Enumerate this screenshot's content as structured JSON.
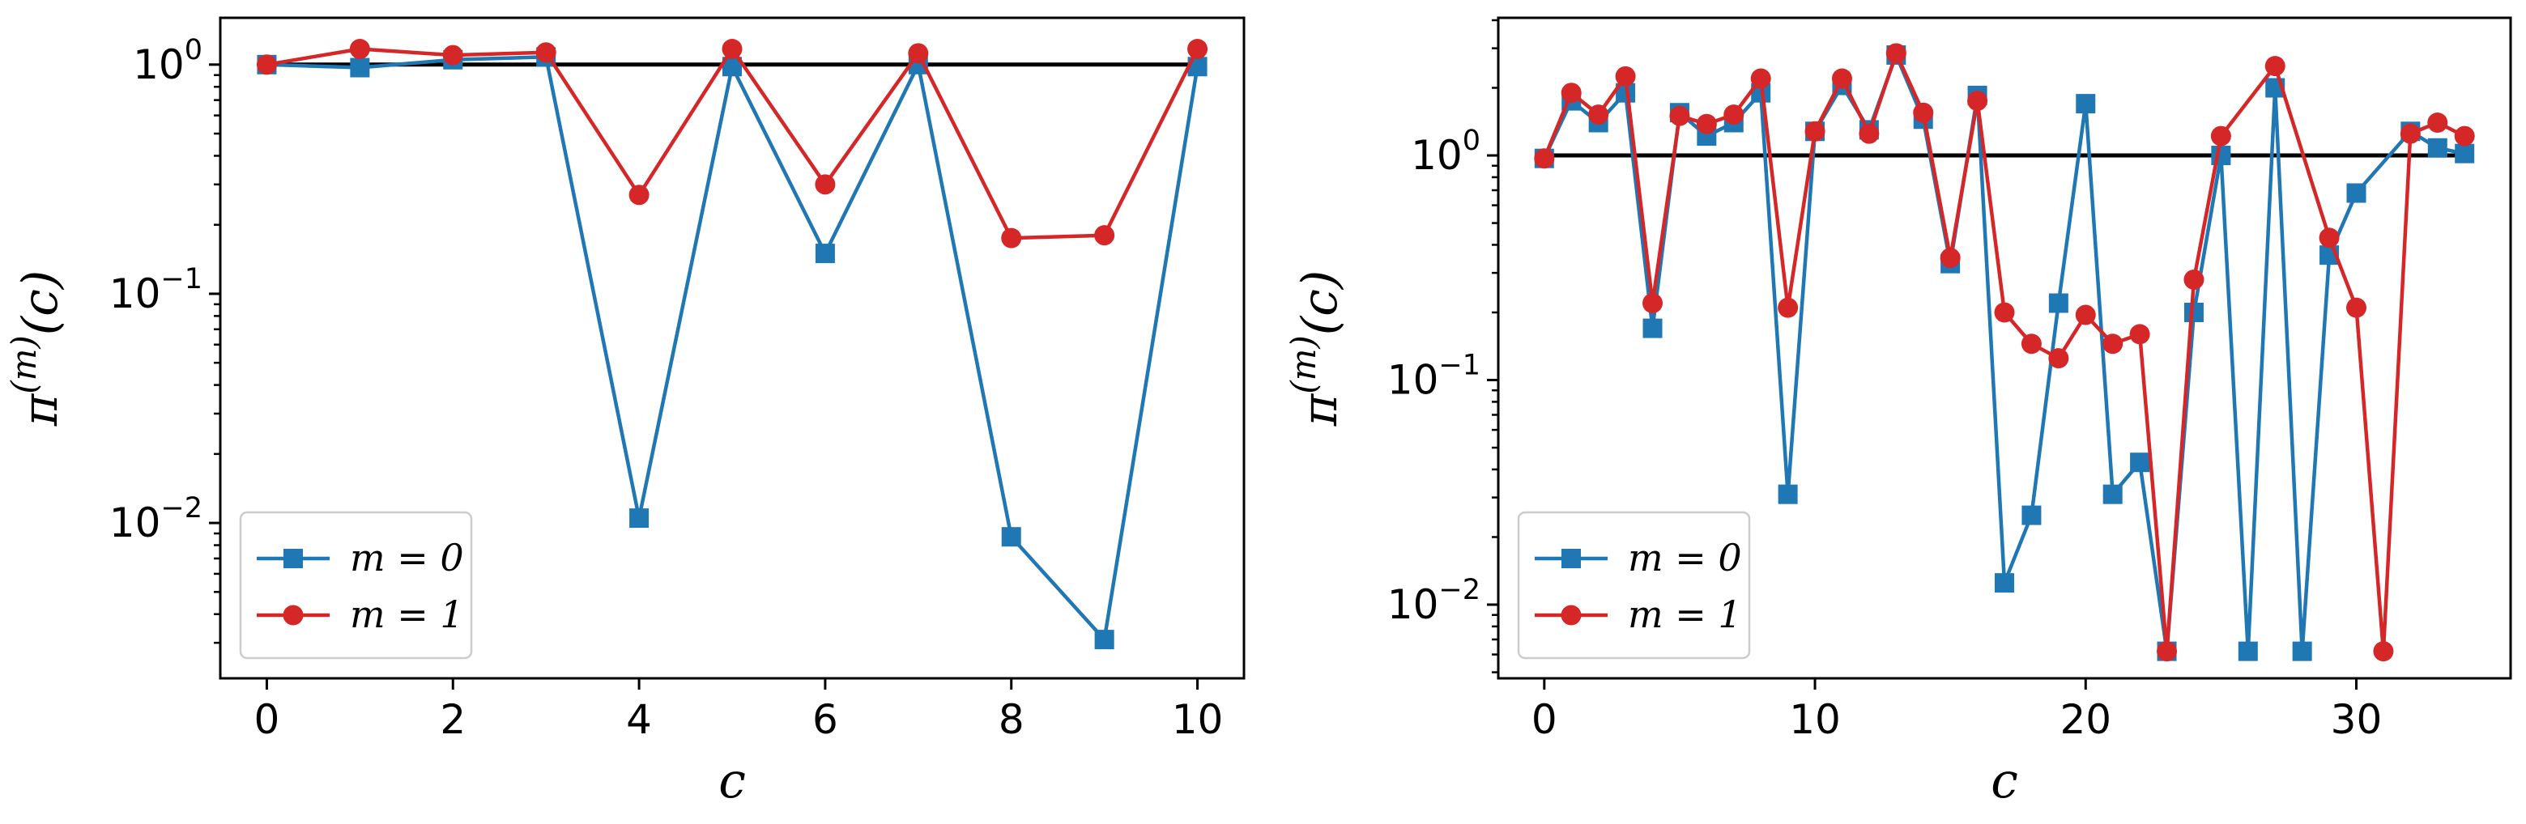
{
  "colors": {
    "m0": "#1f77b4",
    "m1": "#d62728",
    "reference": "#000000"
  },
  "chart_data": [
    {
      "type": "line",
      "xscale": "linear",
      "yscale": "log",
      "xlabel": "c",
      "ylabel_base": "π",
      "ylabel_sup": "(m)",
      "ylabel_tail": "(c)",
      "xlim": [
        -0.5,
        10.5
      ],
      "ylim": [
        0.0021,
        1.6
      ],
      "xticks": [
        0,
        2,
        4,
        6,
        8,
        10
      ],
      "xtick_labels": [
        "0",
        "2",
        "4",
        "6",
        "8",
        "10"
      ],
      "yticks": [
        {
          "value": 1,
          "base": "10",
          "exp": "0"
        },
        {
          "value": 0.1,
          "base": "10",
          "exp": "−1"
        },
        {
          "value": 0.01,
          "base": "10",
          "exp": "−2"
        }
      ],
      "reference_line": 1,
      "legend": {
        "placement": "lower-left",
        "entries": [
          "m = 0",
          "m = 1"
        ]
      },
      "series": [
        {
          "name": "m = 0",
          "marker": "square",
          "x": [
            0,
            1,
            2,
            3,
            4,
            5,
            6,
            7,
            8,
            9,
            10
          ],
          "values": [
            1.0,
            0.97,
            1.05,
            1.08,
            0.0105,
            0.98,
            0.15,
            1.0,
            0.0087,
            0.0031,
            0.98
          ]
        },
        {
          "name": "m = 1",
          "marker": "circle",
          "x": [
            0,
            1,
            2,
            3,
            4,
            5,
            6,
            7,
            8,
            9,
            10
          ],
          "values": [
            1.0,
            1.17,
            1.1,
            1.13,
            0.27,
            1.17,
            0.3,
            1.12,
            0.175,
            0.18,
            1.17
          ]
        }
      ]
    },
    {
      "type": "line",
      "xscale": "linear",
      "yscale": "log",
      "xlabel": "c",
      "ylabel_base": "π",
      "ylabel_sup": "(m)",
      "ylabel_tail": "(c)",
      "xlim": [
        -1.7,
        35.7
      ],
      "ylim": [
        0.0047,
        4.1
      ],
      "xticks": [
        0,
        10,
        20,
        30
      ],
      "xtick_labels": [
        "0",
        "10",
        "20",
        "30"
      ],
      "yticks": [
        {
          "value": 1,
          "base": "10",
          "exp": "0"
        },
        {
          "value": 0.1,
          "base": "10",
          "exp": "−1"
        },
        {
          "value": 0.01,
          "base": "10",
          "exp": "−2"
        }
      ],
      "reference_line": 1,
      "legend": {
        "placement": "lower-left",
        "entries": [
          "m = 0",
          "m = 1"
        ]
      },
      "series": [
        {
          "name": "m = 0",
          "marker": "square",
          "x": [
            0,
            1,
            2,
            3,
            4,
            5,
            6,
            7,
            8,
            9,
            10,
            11,
            12,
            13,
            14,
            15,
            16,
            17,
            18,
            19,
            20,
            21,
            22,
            23,
            24,
            25,
            26,
            27,
            28,
            29,
            30,
            32,
            33,
            34
          ],
          "values": [
            0.97,
            1.75,
            1.4,
            1.9,
            0.17,
            1.55,
            1.22,
            1.4,
            1.9,
            0.031,
            1.28,
            2.05,
            1.3,
            2.8,
            1.45,
            0.33,
            1.85,
            0.0125,
            0.025,
            0.22,
            1.7,
            0.031,
            0.043,
            0.0062,
            0.2,
            1.0,
            0.0062,
            2.0,
            0.0062,
            0.36,
            0.68,
            1.28,
            1.08,
            1.02
          ]
        },
        {
          "name": "m = 1",
          "marker": "circle",
          "x": [
            0,
            1,
            2,
            3,
            4,
            5,
            6,
            7,
            8,
            9,
            10,
            11,
            12,
            13,
            14,
            15,
            16,
            17,
            18,
            19,
            20,
            21,
            22,
            23,
            24,
            25,
            27,
            29,
            30,
            31,
            32,
            33,
            34
          ],
          "values": [
            0.97,
            1.9,
            1.52,
            2.25,
            0.22,
            1.5,
            1.38,
            1.52,
            2.2,
            0.21,
            1.28,
            2.2,
            1.25,
            2.85,
            1.55,
            0.35,
            1.75,
            0.2,
            0.145,
            0.125,
            0.195,
            0.145,
            0.16,
            0.0062,
            0.28,
            1.22,
            2.5,
            0.43,
            0.21,
            0.0062,
            1.25,
            1.4,
            1.22
          ]
        }
      ]
    }
  ]
}
